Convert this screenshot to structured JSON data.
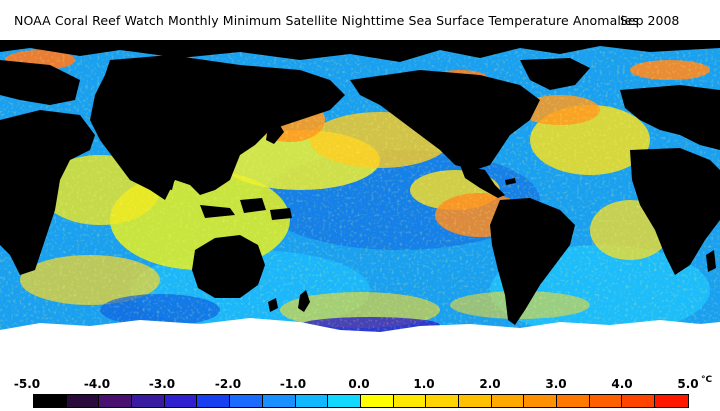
{
  "title": "NOAA Coral Reef Watch Monthly Minimum Satellite Nighttime Sea Surface Temperature Anomalies",
  "date": "Sep 2008",
  "legend": {
    "ticks": [
      "-5.0",
      "-4.0",
      "-3.0",
      "-2.0",
      "-1.0",
      "0.0",
      "1.0",
      "2.0",
      "3.0",
      "4.0",
      "5.0"
    ],
    "unit": "°C",
    "colors": [
      "#000000",
      "#2a0a3c",
      "#4a1070",
      "#3a1aa0",
      "#3020d0",
      "#1840f0",
      "#1a6cff",
      "#1890ff",
      "#10b8ff",
      "#10d8ff",
      "#ffff00",
      "#ffe800",
      "#ffd400",
      "#ffc000",
      "#ffa800",
      "#ff9000",
      "#ff7800",
      "#ff6000",
      "#ff4400",
      "#ff1800"
    ]
  }
}
